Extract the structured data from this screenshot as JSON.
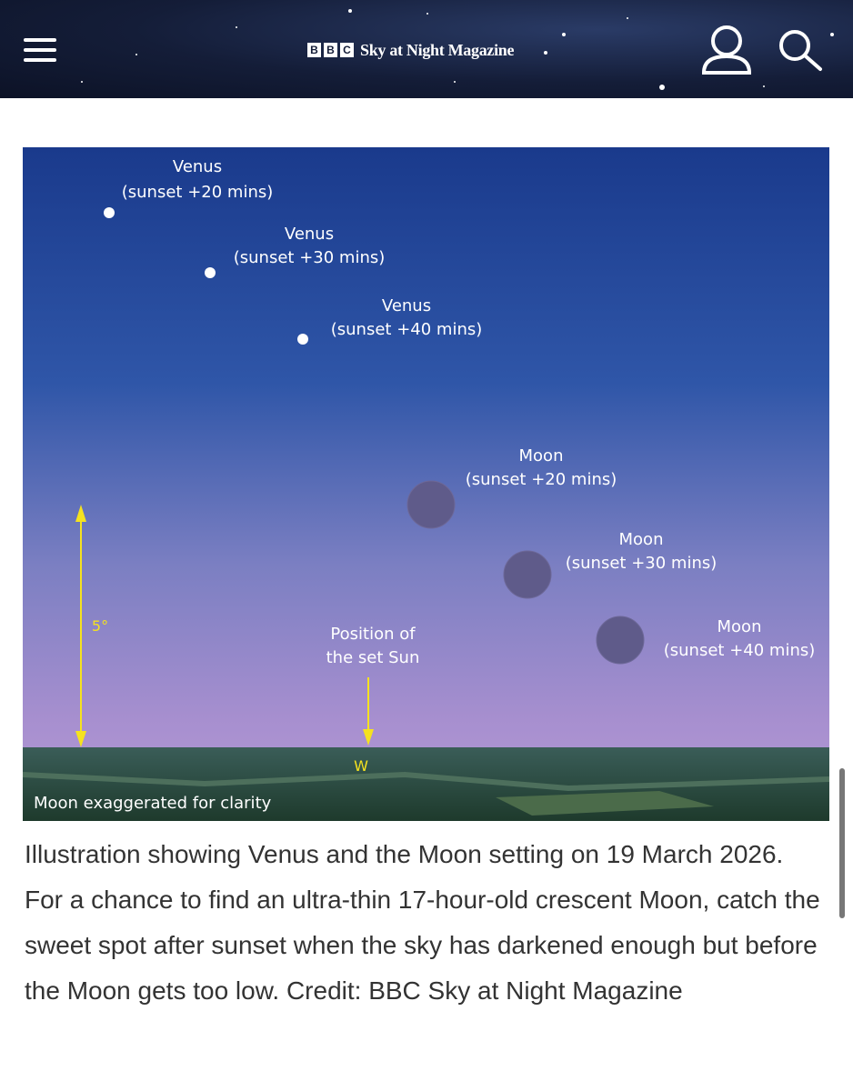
{
  "header": {
    "logo_blocks": [
      "B",
      "B",
      "C"
    ],
    "logo_text": "Sky at Night Magazine"
  },
  "illustration": {
    "venus": [
      {
        "title": "Venus",
        "subtitle": "(sunset +20 mins)"
      },
      {
        "title": "Venus",
        "subtitle": "(sunset +30 mins)"
      },
      {
        "title": "Venus",
        "subtitle": "(sunset +40 mins)"
      }
    ],
    "moon": [
      {
        "title": "Moon",
        "subtitle": "(sunset +20 mins)"
      },
      {
        "title": "Moon",
        "subtitle": "(sunset +30 mins)"
      },
      {
        "title": "Moon",
        "subtitle": "(sunset +40 mins)"
      }
    ],
    "scale_label": "5°",
    "sun_label": [
      "Position of",
      "the set Sun"
    ],
    "compass": "W",
    "note": "Moon exaggerated for clarity"
  },
  "caption": "Illustration showing Venus and the Moon setting on 19 March 2026. For a chance to find an ultra-thin 17-hour-old crescent Moon, catch the sweet spot after sunset when the sky has darkened enough but before the Moon gets too low. Credit: BBC Sky at Night Magazine"
}
